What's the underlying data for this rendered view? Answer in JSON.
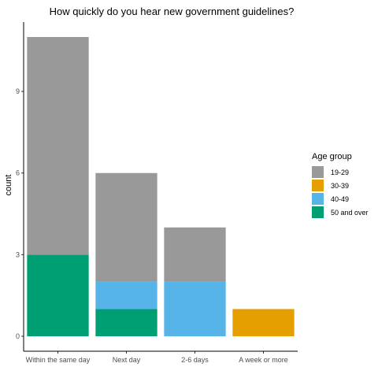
{
  "chart_data": {
    "type": "bar",
    "stacked": true,
    "title": "How quickly do you hear new government guidelines?",
    "xlabel": "",
    "ylabel": "count",
    "categories": [
      "Within the same day",
      "Next day",
      "2-6 days",
      "A week or more"
    ],
    "series": [
      {
        "name": "19-29",
        "color": "#999999",
        "values": [
          8,
          4,
          2,
          0
        ]
      },
      {
        "name": "30-39",
        "color": "#E69F00",
        "values": [
          0,
          0,
          0,
          1
        ]
      },
      {
        "name": "40-49",
        "color": "#56B4E9",
        "values": [
          0,
          1,
          2,
          0
        ]
      },
      {
        "name": "50 and over",
        "color": "#009E73",
        "values": [
          3,
          1,
          0,
          0
        ]
      }
    ],
    "stack_order_bottom_to_top": [
      "50 and over",
      "40-49",
      "30-39",
      "19-29"
    ],
    "yticks": [
      0,
      3,
      6,
      9
    ],
    "ylim": [
      -0.55,
      11.55
    ],
    "grid": false,
    "legend_title": "Age group",
    "legend_position": "right"
  }
}
